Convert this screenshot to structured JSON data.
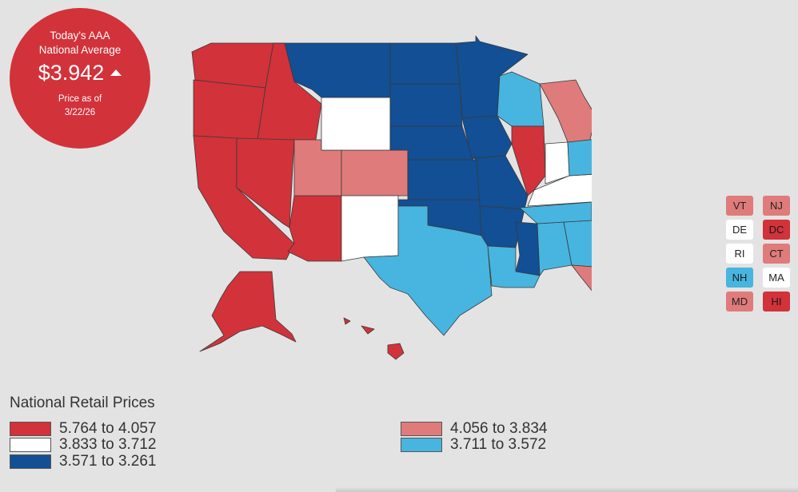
{
  "badge": {
    "line1": "Today's AAA",
    "line2": "National Average",
    "price": "$3.942",
    "trend_icon": "up-triangle-icon",
    "asof_label": "Price as of",
    "date": "3/22/26"
  },
  "legend": {
    "title": "National Retail Prices",
    "items": [
      {
        "label": "5.764 to 4.057",
        "color": "#d2323a"
      },
      {
        "label": "3.833 to 3.712",
        "color": "#ffffff"
      },
      {
        "label": "3.571 to 3.261",
        "color": "#124f94"
      },
      {
        "label": "4.056 to 3.834",
        "color": "#e07b7b"
      },
      {
        "label": "3.711 to 3.572",
        "color": "#47b5df"
      }
    ]
  },
  "small_states": [
    {
      "abbr": "VT",
      "color": "#e07b7b"
    },
    {
      "abbr": "NJ",
      "color": "#e07b7b"
    },
    {
      "abbr": "DE",
      "color": "#ffffff"
    },
    {
      "abbr": "DC",
      "color": "#d2323a"
    },
    {
      "abbr": "RI",
      "color": "#ffffff"
    },
    {
      "abbr": "CT",
      "color": "#e07b7b"
    },
    {
      "abbr": "NH",
      "color": "#47b5df"
    },
    {
      "abbr": "MA",
      "color": "#ffffff"
    },
    {
      "abbr": "MD",
      "color": "#e07b7b"
    },
    {
      "abbr": "HI",
      "color": "#d2323a"
    }
  ],
  "colors": {
    "tier1": "#d2323a",
    "tier2": "#e07b7b",
    "tier3": "#ffffff",
    "tier4": "#47b5df",
    "tier5": "#124f94",
    "border": "#3a3a3a"
  }
}
